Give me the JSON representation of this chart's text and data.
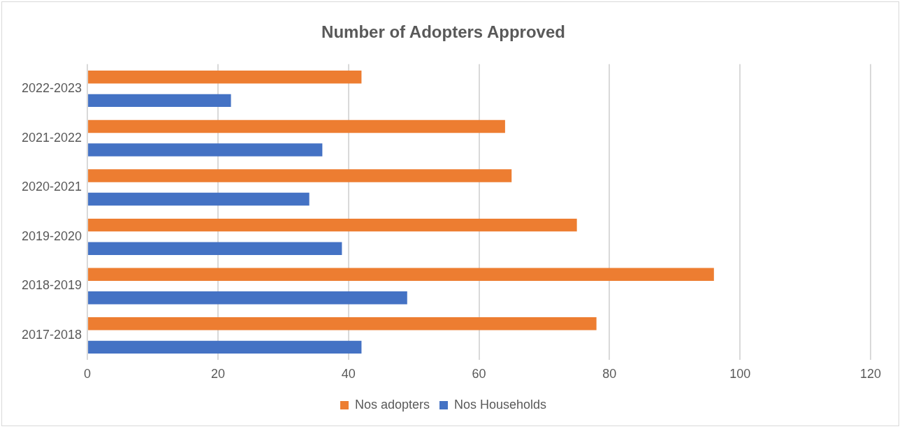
{
  "chart_data": {
    "type": "bar",
    "orientation": "horizontal",
    "title": "Number of Adopters Approved",
    "categories": [
      "2022-2023",
      "2021-2022",
      "2020-2021",
      "2019-2020",
      "2018-2019",
      "2017-2018"
    ],
    "series": [
      {
        "name": "Nos adopters",
        "color": "#ed7d31",
        "values": [
          42,
          64,
          65,
          75,
          96,
          78
        ]
      },
      {
        "name": "Nos Households",
        "color": "#4472c4",
        "values": [
          22,
          36,
          34,
          39,
          49,
          42
        ]
      }
    ],
    "xlim": [
      0,
      120
    ],
    "xticks": [
      0,
      20,
      40,
      60,
      80,
      100,
      120
    ],
    "grid": "x",
    "legend": "bottom"
  }
}
